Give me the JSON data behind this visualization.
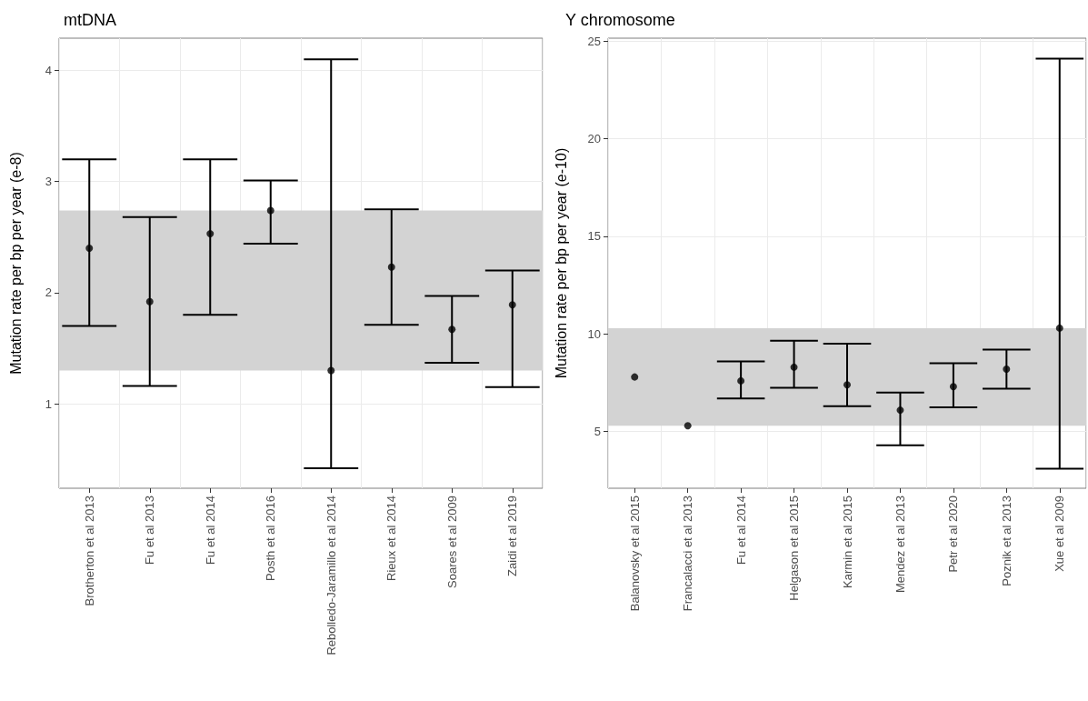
{
  "chart_data": [
    {
      "type": "scatter",
      "title": "mtDNA",
      "ylabel": "Mutation rate per bp per year (e-8)",
      "categories": [
        "Brotherton et al 2013",
        "Fu et al 2013",
        "Fu et al 2014",
        "Posth et al 2016",
        "Rebolledo-Jaramillo et al 2014",
        "Rieux et al 2014",
        "Soares et al 2009",
        "Zaidi et al 2019"
      ],
      "series": [
        {
          "color": "#000000",
          "values": [
            2.4,
            1.92,
            2.53,
            2.74,
            1.3,
            2.23,
            1.67,
            1.89
          ],
          "errors": [
            [
              1.7,
              3.2
            ],
            [
              1.16,
              2.68
            ],
            [
              1.8,
              3.2
            ],
            [
              2.44,
              3.01
            ],
            [
              0.42,
              4.1
            ],
            [
              1.71,
              2.75
            ],
            [
              1.37,
              1.97
            ],
            [
              1.15,
              2.2
            ]
          ]
        }
      ],
      "ylim": [
        0.24,
        4.29
      ],
      "yticks": [
        1,
        2,
        3,
        4
      ],
      "grid": true,
      "marker": "circle",
      "bands": [
        {
          "axis": "y",
          "from": 1.3,
          "to": 2.74,
          "color": "#d3d3d3"
        }
      ]
    },
    {
      "type": "scatter",
      "title": "Y chromosome",
      "ylabel": "Mutation rate per bp per year (e-10)",
      "categories": [
        "Balanovsky et al 2015",
        "Francalacci et al 2013",
        "Fu et al 2014",
        "Helgason et al 2015",
        "Karmin et al 2015",
        "Mendez et al 2013",
        "Petr et al 2020",
        "Poznik et al 2013",
        "Xue et al 2009"
      ],
      "series": [
        {
          "color": "#000000",
          "values": [
            7.8,
            5.3,
            7.6,
            8.3,
            7.4,
            6.1,
            7.3,
            8.2,
            10.3
          ],
          "errors": [
            null,
            null,
            [
              6.7,
              8.6
            ],
            [
              7.25,
              9.65
            ],
            [
              6.3,
              9.5
            ],
            [
              4.3,
              7.0
            ],
            [
              6.25,
              8.5
            ],
            [
              7.2,
              9.2
            ],
            [
              3.1,
              24.1
            ]
          ]
        }
      ],
      "ylim": [
        2.1,
        25.15
      ],
      "yticks": [
        5,
        10,
        15,
        20,
        25
      ],
      "grid": true,
      "marker": "circle",
      "bands": [
        {
          "axis": "y",
          "from": 5.3,
          "to": 10.3,
          "color": "#d3d3d3"
        }
      ]
    }
  ]
}
